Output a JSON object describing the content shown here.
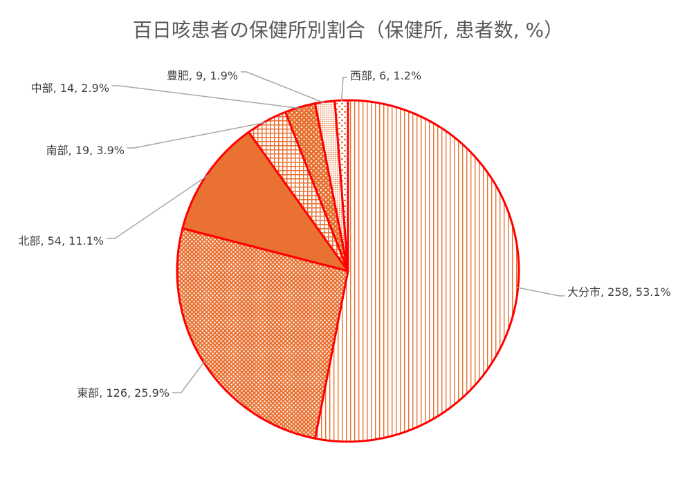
{
  "chart_data": {
    "type": "pie",
    "title": "百日咳患者の保健所別割合（保健所, 患者数, %）",
    "slices": [
      {
        "name": "大分市",
        "value": 258,
        "percent": "53.1%",
        "label": "大分市, 258, 53.1%",
        "pattern": "vertical-lines"
      },
      {
        "name": "東部",
        "value": 126,
        "percent": "25.9%",
        "label": "東部, 126, 25.9%",
        "pattern": "dots"
      },
      {
        "name": "北部",
        "value": 54,
        "percent": "11.1%",
        "label": "北部, 54, 11.1%",
        "pattern": "solid"
      },
      {
        "name": "南部",
        "value": 19,
        "percent": "3.9%",
        "label": "南部, 19, 3.9%",
        "pattern": "grid"
      },
      {
        "name": "中部",
        "value": 14,
        "percent": "2.9%",
        "label": "中部, 14, 2.9%",
        "pattern": "dark-dots"
      },
      {
        "name": "豊肥",
        "value": 9,
        "percent": "1.9%",
        "label": "豊肥, 9, 1.9%",
        "pattern": "fine-dots"
      },
      {
        "name": "西部",
        "value": 6,
        "percent": "1.2%",
        "label": "西部, 6, 1.2%",
        "pattern": "dashes"
      }
    ],
    "start_angle_deg": 0,
    "direction": "clockwise",
    "colors": {
      "fill": "#E97132",
      "border": "#FF0000",
      "leader": "#A6A6A6",
      "label_text": "#404040",
      "title_text": "#595959"
    }
  }
}
